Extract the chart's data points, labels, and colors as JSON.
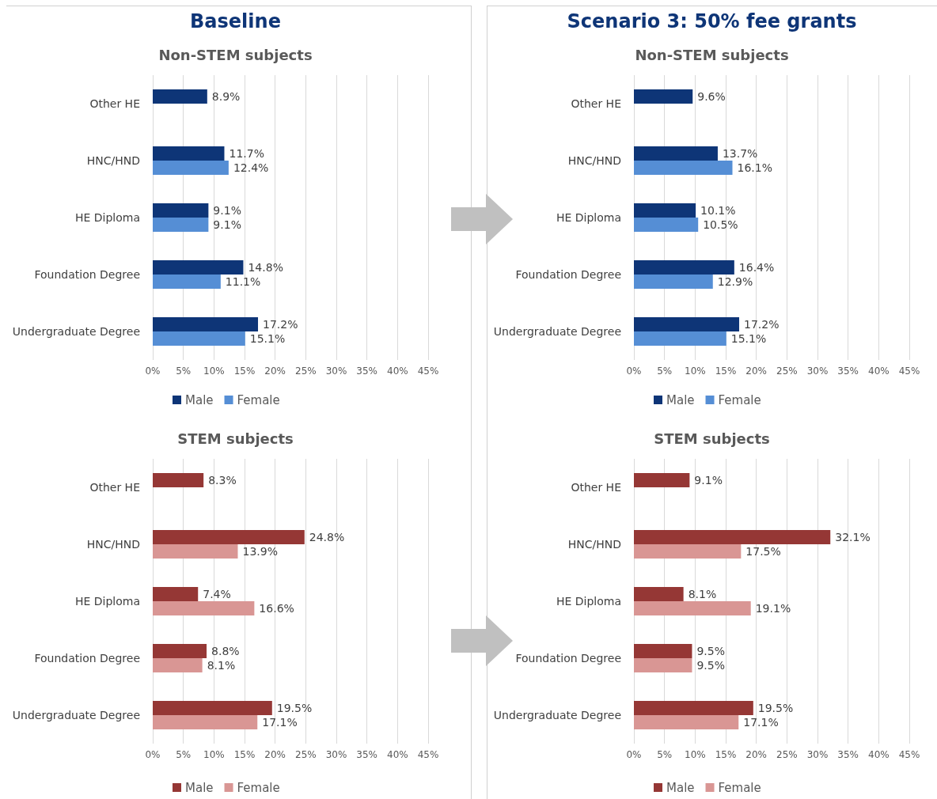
{
  "chart_data": [
    {
      "type": "bar",
      "orientation": "horizontal",
      "title": "Baseline",
      "subtitle": "Non-STEM subjects",
      "categories": [
        "Other HE",
        "HNC/HND",
        "HE Diploma",
        "Foundation Degree",
        "Undergraduate Degree"
      ],
      "series": [
        {
          "name": "Male",
          "color": "#0e3577",
          "values": [
            8.9,
            11.7,
            9.1,
            14.8,
            17.2
          ],
          "value_labels": [
            "8.9%",
            "11.7%",
            "9.1%",
            "14.8%",
            "17.2%"
          ]
        },
        {
          "name": "Female",
          "color": "#558ed5",
          "values": [
            null,
            12.4,
            9.1,
            11.1,
            15.1
          ],
          "value_labels": [
            null,
            "12.4%",
            "9.1%",
            "11.1%",
            "15.1%"
          ]
        }
      ],
      "xlim": [
        0,
        45
      ],
      "xticks": [
        {
          "value": 0,
          "label": "0%"
        },
        {
          "value": 5,
          "label": "5%"
        },
        {
          "value": 10,
          "label": "10%"
        },
        {
          "value": 15,
          "label": "15%"
        },
        {
          "value": 20,
          "label": "20%"
        },
        {
          "value": 25,
          "label": "25%"
        },
        {
          "value": 30,
          "label": "30%"
        },
        {
          "value": 35,
          "label": "35%"
        },
        {
          "value": 40,
          "label": "40%"
        },
        {
          "value": 45,
          "label": "45%"
        }
      ],
      "grid": "x",
      "legend": "bottom"
    },
    {
      "type": "bar",
      "orientation": "horizontal",
      "title": "Scenario 3: 50% fee grants",
      "subtitle": "Non-STEM subjects",
      "categories": [
        "Other HE",
        "HNC/HND",
        "HE Diploma",
        "Foundation Degree",
        "Undergraduate Degree"
      ],
      "series": [
        {
          "name": "Male",
          "color": "#0e3577",
          "values": [
            9.6,
            13.7,
            10.1,
            16.4,
            17.2
          ],
          "value_labels": [
            "9.6%",
            "13.7%",
            "10.1%",
            "16.4%",
            "17.2%"
          ]
        },
        {
          "name": "Female",
          "color": "#558ed5",
          "values": [
            null,
            16.1,
            10.5,
            12.9,
            15.1
          ],
          "value_labels": [
            null,
            "16.1%",
            "10.5%",
            "12.9%",
            "15.1%"
          ]
        }
      ],
      "xlim": [
        0,
        45
      ],
      "xticks": [
        {
          "value": 0,
          "label": "0%"
        },
        {
          "value": 5,
          "label": "5%"
        },
        {
          "value": 10,
          "label": "10%"
        },
        {
          "value": 15,
          "label": "15%"
        },
        {
          "value": 20,
          "label": "20%"
        },
        {
          "value": 25,
          "label": "25%"
        },
        {
          "value": 30,
          "label": "30%"
        },
        {
          "value": 35,
          "label": "35%"
        },
        {
          "value": 40,
          "label": "40%"
        },
        {
          "value": 45,
          "label": "45%"
        }
      ],
      "grid": "x",
      "legend": "bottom"
    },
    {
      "type": "bar",
      "orientation": "horizontal",
      "title": "STEM subjects",
      "categories": [
        "Other HE",
        "HNC/HND",
        "HE Diploma",
        "Foundation Degree",
        "Undergraduate Degree"
      ],
      "series": [
        {
          "name": "Male",
          "color": "#953735",
          "values": [
            8.3,
            24.8,
            7.4,
            8.8,
            19.5
          ],
          "value_labels": [
            "8.3%",
            "24.8%",
            "7.4%",
            "8.8%",
            "19.5%"
          ]
        },
        {
          "name": "Female",
          "color": "#d99694",
          "values": [
            null,
            13.9,
            16.6,
            8.1,
            17.1
          ],
          "value_labels": [
            null,
            "13.9%",
            "16.6%",
            "8.1%",
            "17.1%"
          ]
        }
      ],
      "xlim": [
        0,
        45
      ],
      "xticks": [
        {
          "value": 0,
          "label": "0%"
        },
        {
          "value": 5,
          "label": "5%"
        },
        {
          "value": 10,
          "label": "10%"
        },
        {
          "value": 15,
          "label": "15%"
        },
        {
          "value": 20,
          "label": "20%"
        },
        {
          "value": 25,
          "label": "25%"
        },
        {
          "value": 30,
          "label": "30%"
        },
        {
          "value": 35,
          "label": "35%"
        },
        {
          "value": 40,
          "label": "40%"
        },
        {
          "value": 45,
          "label": "45%"
        }
      ],
      "grid": "x",
      "legend": "bottom"
    },
    {
      "type": "bar",
      "orientation": "horizontal",
      "title": "STEM subjects",
      "categories": [
        "Other HE",
        "HNC/HND",
        "HE Diploma",
        "Foundation Degree",
        "Undergraduate Degree"
      ],
      "series": [
        {
          "name": "Male",
          "color": "#953735",
          "values": [
            9.1,
            32.1,
            8.1,
            9.5,
            19.5
          ],
          "value_labels": [
            "9.1%",
            "32.1%",
            "8.1%",
            "9.5%",
            "19.5%"
          ]
        },
        {
          "name": "Female",
          "color": "#d99694",
          "values": [
            null,
            17.5,
            19.1,
            9.5,
            17.1
          ],
          "value_labels": [
            null,
            "17.5%",
            "19.1%",
            "9.5%",
            "17.1%"
          ]
        }
      ],
      "xlim": [
        0,
        45
      ],
      "xticks": [
        {
          "value": 0,
          "label": "0%"
        },
        {
          "value": 5,
          "label": "5%"
        },
        {
          "value": 10,
          "label": "10%"
        },
        {
          "value": 15,
          "label": "15%"
        },
        {
          "value": 20,
          "label": "20%"
        },
        {
          "value": 25,
          "label": "25%"
        },
        {
          "value": 30,
          "label": "30%"
        },
        {
          "value": 35,
          "label": "35%"
        },
        {
          "value": 40,
          "label": "40%"
        },
        {
          "value": 45,
          "label": "45%"
        }
      ],
      "grid": "x",
      "legend": "bottom"
    }
  ]
}
